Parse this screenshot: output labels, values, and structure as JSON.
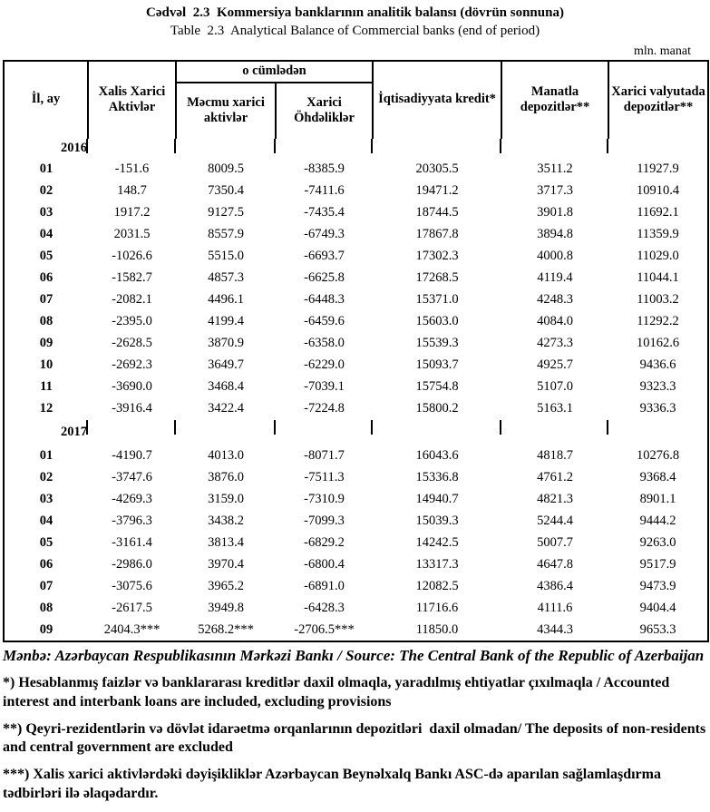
{
  "page": {
    "title_az": "Cədvəl  2.3  Kommersiya banklarının analitik balansı (dövrün sonnuna)",
    "title_en": "Table  2.3  Analytical Balance of Commercial banks (end of period)",
    "unit_label": "mln. manat"
  },
  "table": {
    "headers": {
      "period": "İl, ay",
      "net_foreign_assets": "Xalis Xarici Aktivlər",
      "including": "o cümlədən",
      "gross_foreign_assets": "Məcmu xarici aktivlər",
      "foreign_liabilities": "Xarici Öhdəliklər",
      "credit_to_economy": "İqtisadiyyata kredit*",
      "manat_deposits": "Manatla depozitlər**",
      "fx_deposits": "Xarici valyutada depozitlər**"
    },
    "groups": [
      {
        "year": "2016",
        "rows": [
          [
            "01",
            "-151.6",
            "8009.5",
            "-8385.9",
            "20305.5",
            "3511.2",
            "11927.9"
          ],
          [
            "02",
            "148.7",
            "7350.4",
            "-7411.6",
            "19471.2",
            "3717.3",
            "10910.4"
          ],
          [
            "03",
            "1917.2",
            "9127.5",
            "-7435.4",
            "18744.5",
            "3901.8",
            "11692.1"
          ],
          [
            "04",
            "2031.5",
            "8557.9",
            "-6749.3",
            "17867.8",
            "3894.8",
            "11359.9"
          ],
          [
            "05",
            "-1026.6",
            "5515.0",
            "-6693.7",
            "17302.3",
            "4000.8",
            "11029.0"
          ],
          [
            "06",
            "-1582.7",
            "4857.3",
            "-6625.8",
            "17268.5",
            "4119.4",
            "11044.1"
          ],
          [
            "07",
            "-2082.1",
            "4496.1",
            "-6448.3",
            "15371.0",
            "4248.3",
            "11003.2"
          ],
          [
            "08",
            "-2395.0",
            "4199.4",
            "-6459.6",
            "15603.0",
            "4084.0",
            "11292.2"
          ],
          [
            "09",
            "-2628.5",
            "3870.9",
            "-6358.0",
            "15539.3",
            "4273.3",
            "10162.6"
          ],
          [
            "10",
            "-2692.3",
            "3649.7",
            "-6229.0",
            "15093.7",
            "4925.7",
            "9436.6"
          ],
          [
            "11",
            "-3690.0",
            "3468.4",
            "-7039.1",
            "15754.8",
            "5107.0",
            "9323.3"
          ],
          [
            "12",
            "-3916.4",
            "3422.4",
            "-7224.8",
            "15800.2",
            "5163.1",
            "9336.3"
          ]
        ]
      },
      {
        "year": "2017",
        "rows": [
          [
            "01",
            "-4190.7",
            "4013.0",
            "-8071.7",
            "16043.6",
            "4818.7",
            "10276.8"
          ],
          [
            "02",
            "-3747.6",
            "3876.0",
            "-7511.3",
            "15336.8",
            "4761.2",
            "9368.4"
          ],
          [
            "03",
            "-4269.3",
            "3159.0",
            "-7310.9",
            "14940.7",
            "4821.3",
            "8901.1"
          ],
          [
            "04",
            "-3796.3",
            "3438.2",
            "-7099.3",
            "15039.3",
            "5244.4",
            "9444.2"
          ],
          [
            "05",
            "-3161.4",
            "3813.4",
            "-6829.2",
            "14242.5",
            "5007.7",
            "9263.0"
          ],
          [
            "06",
            "-2986.0",
            "3970.4",
            "-6800.4",
            "13317.3",
            "4647.8",
            "9517.9"
          ],
          [
            "07",
            "-3075.6",
            "3965.2",
            "-6891.0",
            "12082.5",
            "4386.4",
            "9473.9"
          ],
          [
            "08",
            "-2617.5",
            "3949.8",
            "-6428.3",
            "11716.6",
            "4111.6",
            "9404.4"
          ],
          [
            "09",
            "2404.3***",
            "5268.2***",
            "-2706.5***",
            "11850.0",
            "4344.3",
            "9653.3"
          ]
        ]
      }
    ]
  },
  "source": "Mənbə: Azərbaycan Respublikasının Mərkəzi Bankı / Source: The Central Bank of the Republic of Azerbaijan",
  "footnotes": [
    "*) Hesablanmış faizlər və banklararası kreditlər daxil olmaqla, yaradılmış ehtiyatlar çıxılmaqla / Accounted interest and interbank loans are included, excluding provisions",
    "**) Qeyri-rezidentlərin və dövlət idarəetmə orqanlarının depozitləri  daxil olmadan/ The deposits of non-residents and central government are excluded",
    "***) Xalis xarici aktivlərdəki dəyişikliklər Azərbaycan Beynəlxalq Bankı ASC-də aparılan sağlamlaşdırma tədbirləri ilə əlaqədardır."
  ]
}
